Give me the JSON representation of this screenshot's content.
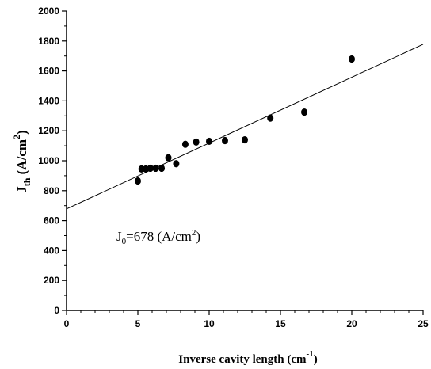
{
  "chart_data": {
    "type": "scatter",
    "title": "",
    "xlabel": {
      "main": "Inverse cavity length (cm",
      "sup": "-1",
      "close": ")"
    },
    "ylabel": {
      "main": "J",
      "sub": "th",
      "unit": " (A/cm",
      "sup": "2",
      "close": ")"
    },
    "xlim": [
      0,
      25
    ],
    "ylim": [
      0,
      2000
    ],
    "x_ticks": [
      "0",
      "5",
      "10",
      "15",
      "20",
      "25"
    ],
    "y_ticks": [
      "0",
      "200",
      "400",
      "600",
      "800",
      "1000",
      "1200",
      "1400",
      "1600",
      "1800",
      "2000"
    ],
    "grid": false,
    "series": [
      {
        "points": [
          {
            "x": 5.0,
            "y": 865
          },
          {
            "x": 5.26,
            "y": 945
          },
          {
            "x": 5.56,
            "y": 945
          },
          {
            "x": 5.88,
            "y": 950
          },
          {
            "x": 6.25,
            "y": 950
          },
          {
            "x": 6.67,
            "y": 950
          },
          {
            "x": 7.14,
            "y": 1020
          },
          {
            "x": 7.69,
            "y": 980
          },
          {
            "x": 8.33,
            "y": 1110
          },
          {
            "x": 9.09,
            "y": 1125
          },
          {
            "x": 10.0,
            "y": 1130
          },
          {
            "x": 11.11,
            "y": 1135
          },
          {
            "x": 12.5,
            "y": 1140
          },
          {
            "x": 14.29,
            "y": 1285
          },
          {
            "x": 16.67,
            "y": 1325
          },
          {
            "x": 20.0,
            "y": 1680
          }
        ]
      }
    ],
    "fit_line": {
      "x": [
        0,
        25
      ],
      "y": [
        678,
        1778
      ]
    },
    "annotation": {
      "prefix": "J",
      "sub": "0",
      "mid": "=678 (A/cm",
      "sup": "2",
      "close": ")"
    }
  }
}
